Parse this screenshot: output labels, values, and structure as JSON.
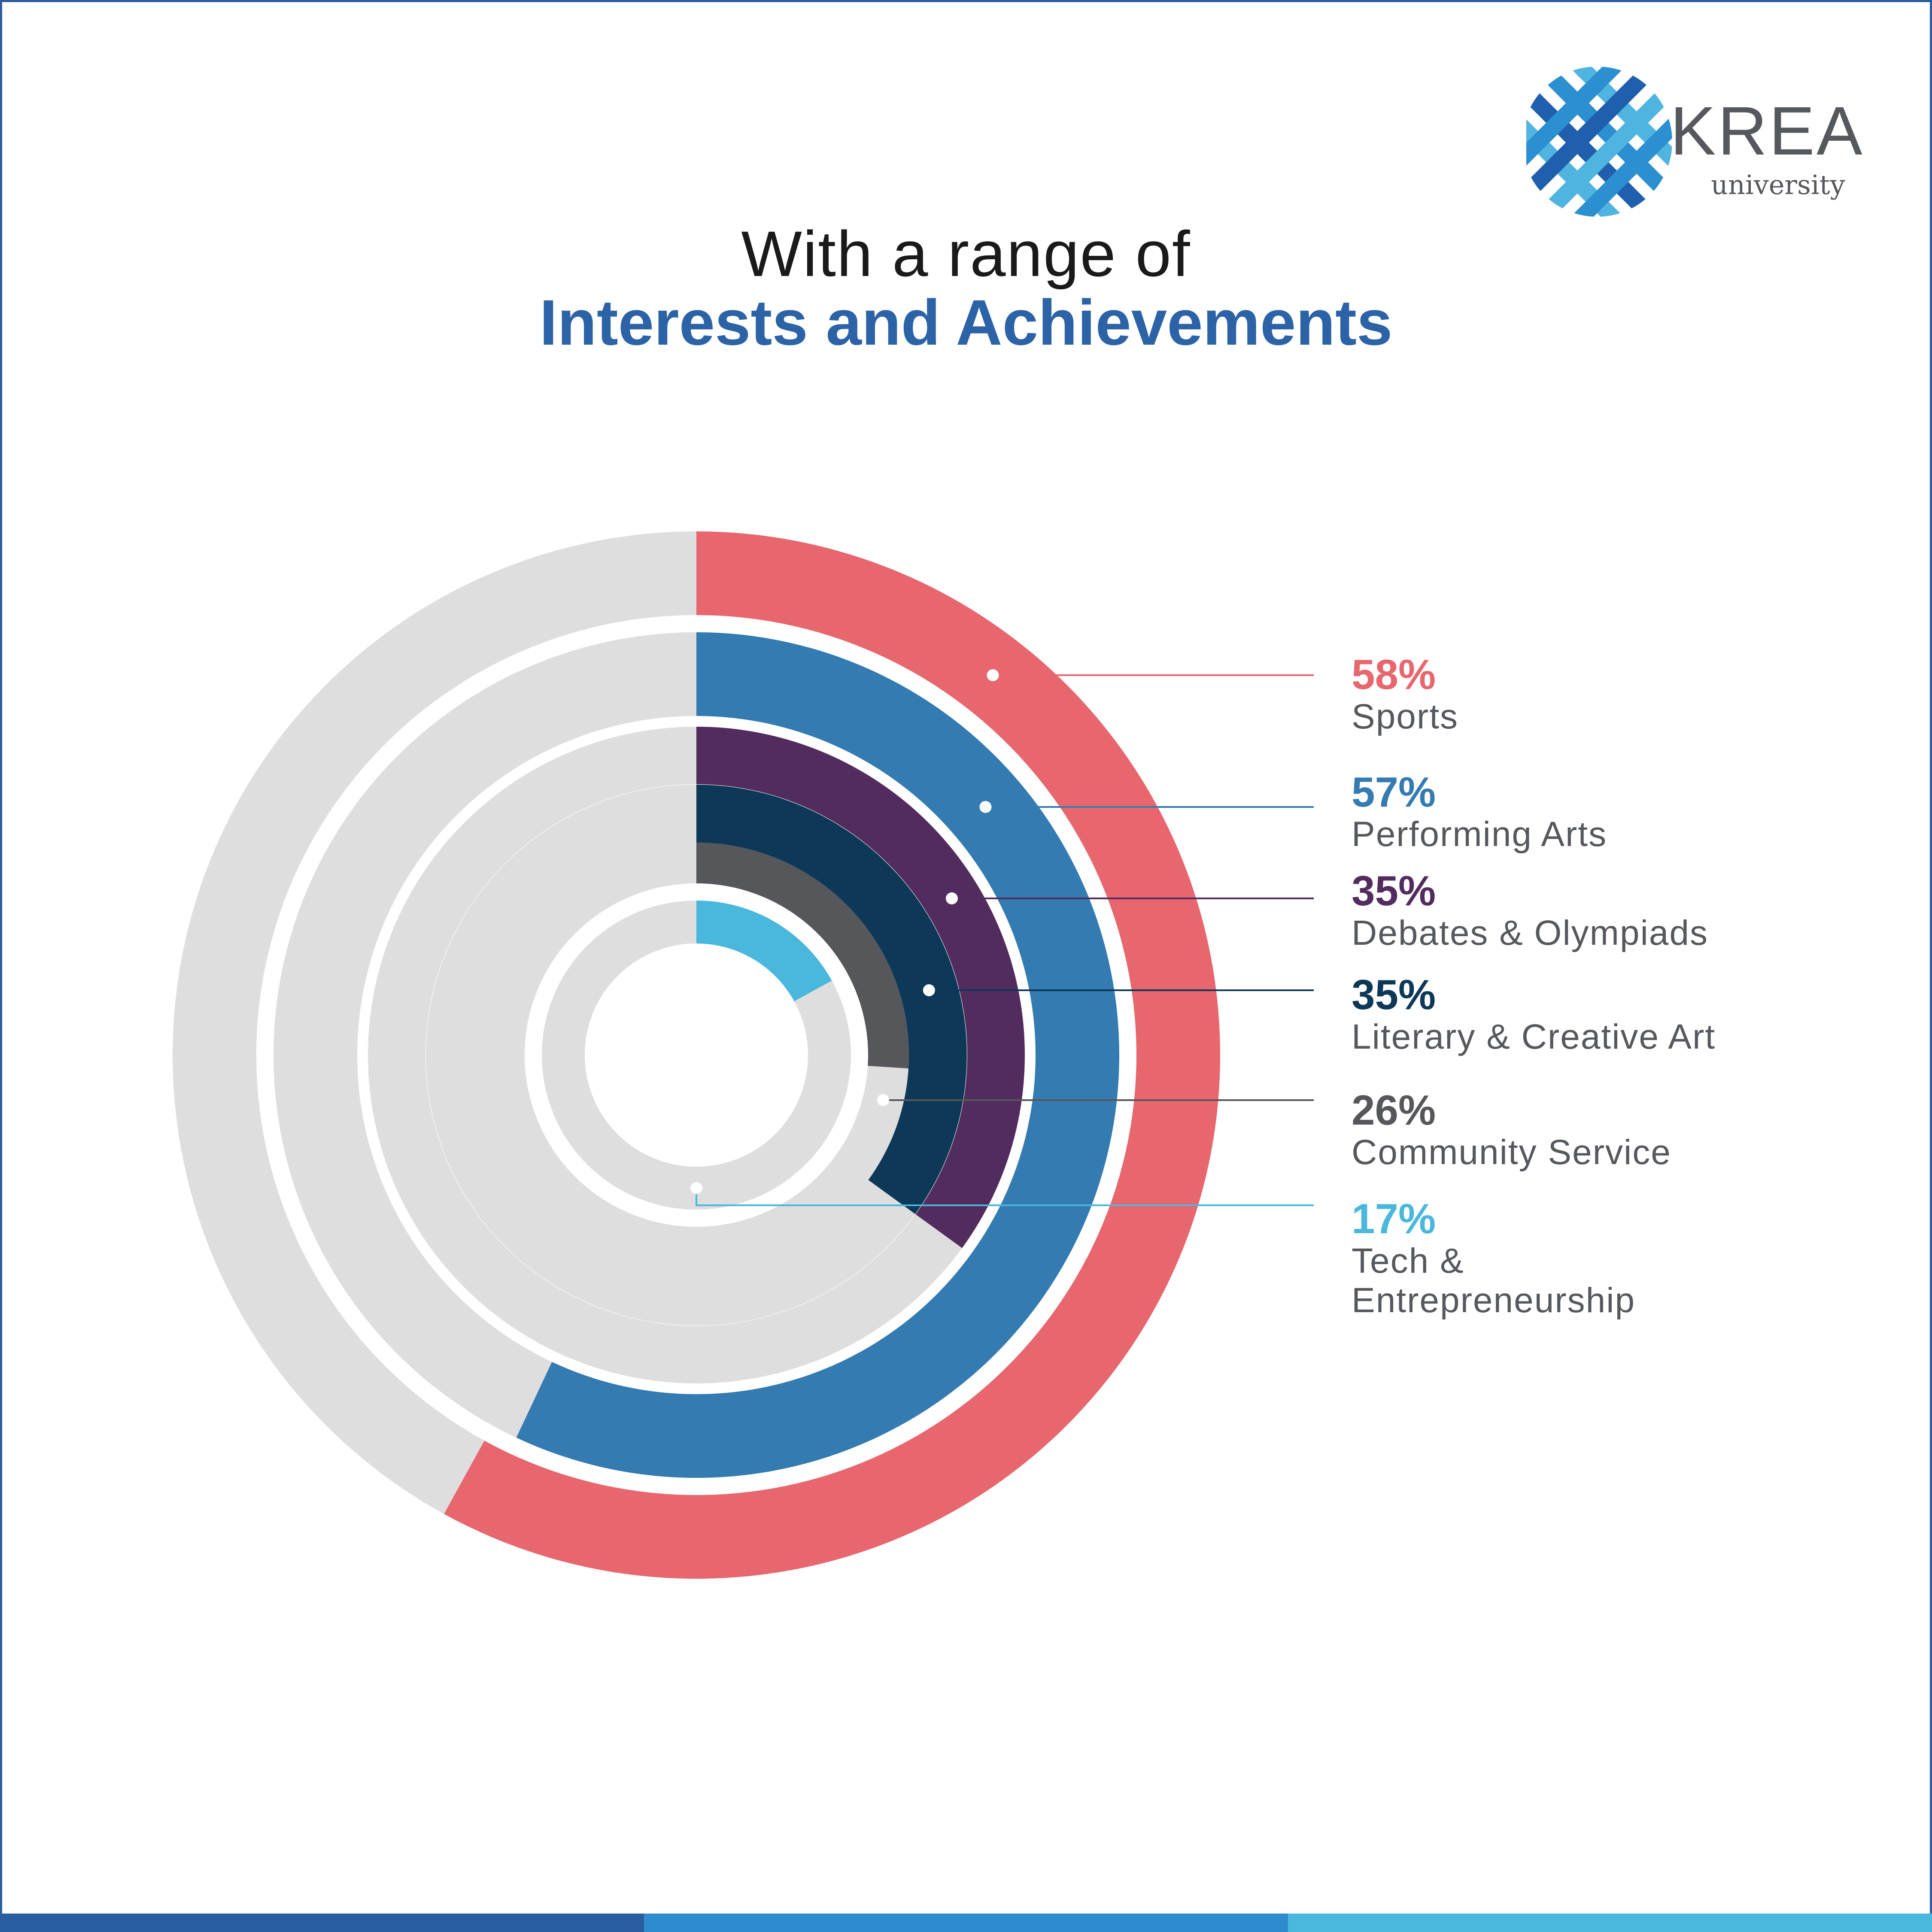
{
  "header": {
    "title_line1": "With a range of",
    "title_line2": "Interests and Achievements"
  },
  "logo": {
    "word": "KREA",
    "sub": "university",
    "colors": [
      "#4fb5e0",
      "#2c8fd0",
      "#1f5fae"
    ]
  },
  "chart_data": {
    "type": "radial-bar",
    "title": "Interests and Achievements",
    "unit": "%",
    "series": [
      {
        "name": "Sports",
        "value": 58,
        "label": "58%",
        "color": "#e8666d"
      },
      {
        "name": "Performing Arts",
        "value": 57,
        "label": "57%",
        "color": "#347bb2"
      },
      {
        "name": "Debates & Olympiads",
        "value": 35,
        "label": "35%",
        "color": "#522c5e"
      },
      {
        "name": "Literary & Creative Art",
        "value": 35,
        "label": "35%",
        "color": "#0d3857"
      },
      {
        "name": "Community Service",
        "value": 26,
        "label": "26%",
        "color": "#55575b"
      },
      {
        "name": "Tech & Entrepreneurship",
        "value": 17,
        "label": "17%",
        "color": "#4ab7dc"
      }
    ],
    "track_color": "#dedede"
  },
  "legend": {
    "items": [
      {
        "pct": "58%",
        "label": "Sports"
      },
      {
        "pct": "57%",
        "label": "Performing Arts"
      },
      {
        "pct": "35%",
        "label": "Debates & Olympiads"
      },
      {
        "pct": "35%",
        "label": "Literary & Creative Art"
      },
      {
        "pct": "26%",
        "label": "Community Service"
      },
      {
        "pct": "17%",
        "label": "Tech &\nEntrepreneurship"
      }
    ]
  },
  "footer_colors": [
    "#2a5d9f",
    "#2e8bcd",
    "#4ab7dc"
  ]
}
